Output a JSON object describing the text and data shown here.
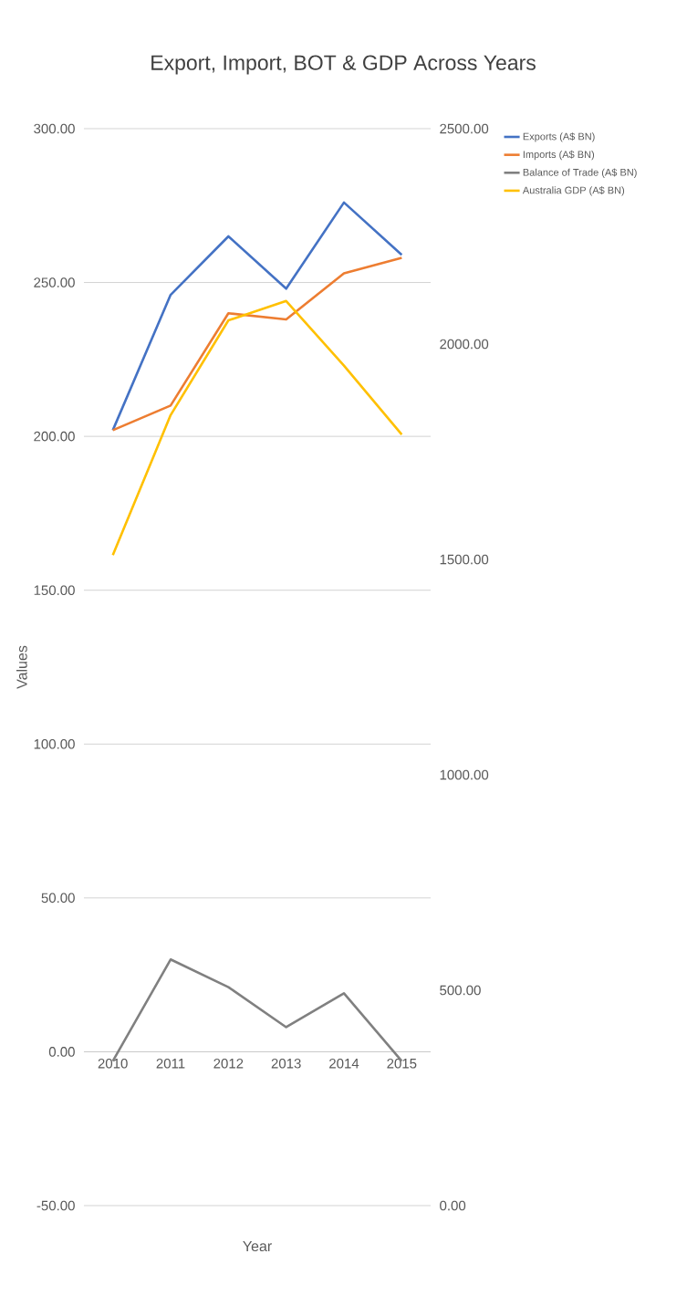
{
  "chart_data": {
    "type": "line",
    "title": "Export, Import, BOT & GDP Across Years",
    "xlabel": "Year",
    "ylabel": "Values",
    "categories": [
      "2010",
      "2011",
      "2012",
      "2013",
      "2014",
      "2015"
    ],
    "series": [
      {
        "name": "Exports (A$ BN)",
        "color": "#4472c4",
        "values": [
          202,
          246,
          265,
          248,
          276,
          259
        ]
      },
      {
        "name": "Imports (A$ BN)",
        "color": "#ed7d31",
        "values": [
          202,
          210,
          240,
          238,
          253,
          258
        ]
      },
      {
        "name": "Balance of Trade (A$ BN)",
        "color": "#808080",
        "values": [
          -3,
          30,
          21,
          8,
          19,
          -3
        ]
      },
      {
        "name": "Australia GDP (A$ BN)",
        "color": "#ffc000",
        "axis": "y2",
        "values": [
          1510,
          1835,
          2055,
          2100,
          1950,
          1790
        ]
      }
    ],
    "ylim": [
      -50,
      300
    ],
    "yticks": [
      {
        "value": -50,
        "label": "-50.00"
      },
      {
        "value": 0,
        "label": "0.00"
      },
      {
        "value": 50,
        "label": "50.00"
      },
      {
        "value": 100,
        "label": "100.00"
      },
      {
        "value": 150,
        "label": "150.00"
      },
      {
        "value": 200,
        "label": "200.00"
      },
      {
        "value": 250,
        "label": "250.00"
      },
      {
        "value": 300,
        "label": "300.00"
      }
    ],
    "y2lim": [
      0,
      2500
    ],
    "y2ticks": [
      {
        "value": 0,
        "label": "0.00"
      },
      {
        "value": 500,
        "label": "500.00"
      },
      {
        "value": 1000,
        "label": "1000.00"
      },
      {
        "value": 1500,
        "label": "1500.00"
      },
      {
        "value": 2000,
        "label": "2000.00"
      },
      {
        "value": 2500,
        "label": "2500.00"
      }
    ],
    "grid": "y",
    "legend": "right"
  }
}
